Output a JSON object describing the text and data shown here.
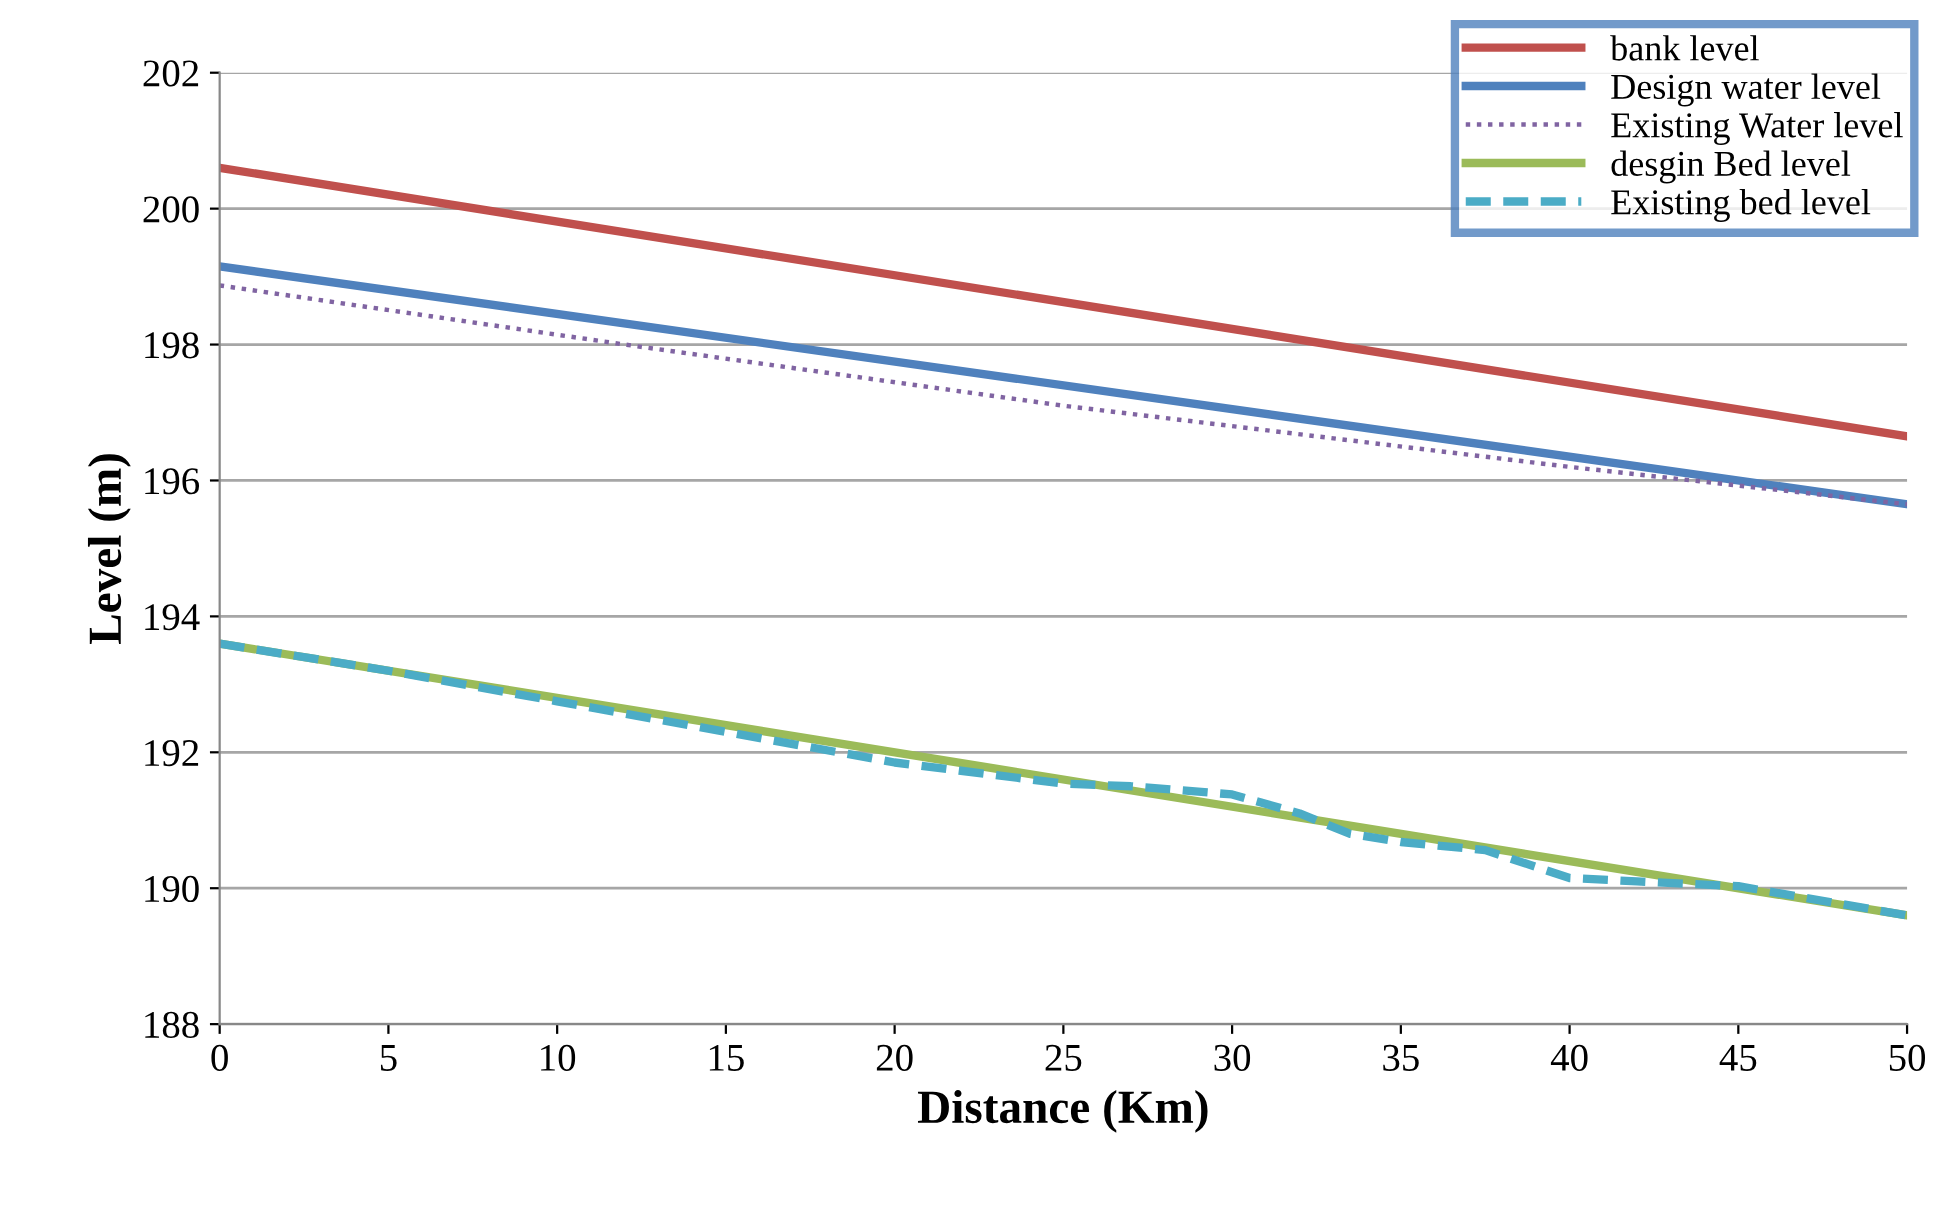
{
  "chart_data": {
    "type": "line",
    "xlabel": "Distance (Km)",
    "ylabel": "Level (m)",
    "xlim": [
      0,
      50
    ],
    "xticks": [
      0,
      5,
      10,
      15,
      20,
      25,
      30,
      35,
      40,
      45,
      50
    ],
    "ylim": [
      188,
      202
    ],
    "yticks": [
      188,
      190,
      192,
      194,
      196,
      198,
      200,
      202
    ],
    "grid": "y",
    "legend": "top right",
    "series": [
      {
        "name": "bank level",
        "color": "#c0504d",
        "line_style": "solid",
        "x": [
          0,
          50
        ],
        "values": [
          200.6,
          196.65
        ]
      },
      {
        "name": "Design water level",
        "color": "#4f81bd",
        "line_style": "solid",
        "x": [
          0,
          50
        ],
        "values": [
          199.15,
          195.65
        ]
      },
      {
        "name": "Existing Water level",
        "color": "#8064a2",
        "line_style": "dotted",
        "x": [
          0,
          12,
          25,
          40,
          50
        ],
        "values": [
          198.87,
          198.0,
          197.1,
          196.2,
          195.65
        ]
      },
      {
        "name": "desgin Bed level",
        "color": "#9bbb59",
        "line_style": "solid",
        "x": [
          0,
          50
        ],
        "values": [
          193.6,
          189.6
        ]
      },
      {
        "name": "Existing bed level",
        "color": "#4bacc6",
        "line_style": "dashed",
        "x": [
          0,
          5,
          10,
          15,
          20,
          25,
          27,
          30,
          32,
          33.5,
          35,
          37.5,
          40,
          42,
          45,
          50
        ],
        "values": [
          193.6,
          193.2,
          192.75,
          192.3,
          191.85,
          191.54,
          191.5,
          191.38,
          191.1,
          190.8,
          190.68,
          190.56,
          190.15,
          190.1,
          190.03,
          189.6
        ]
      }
    ]
  }
}
